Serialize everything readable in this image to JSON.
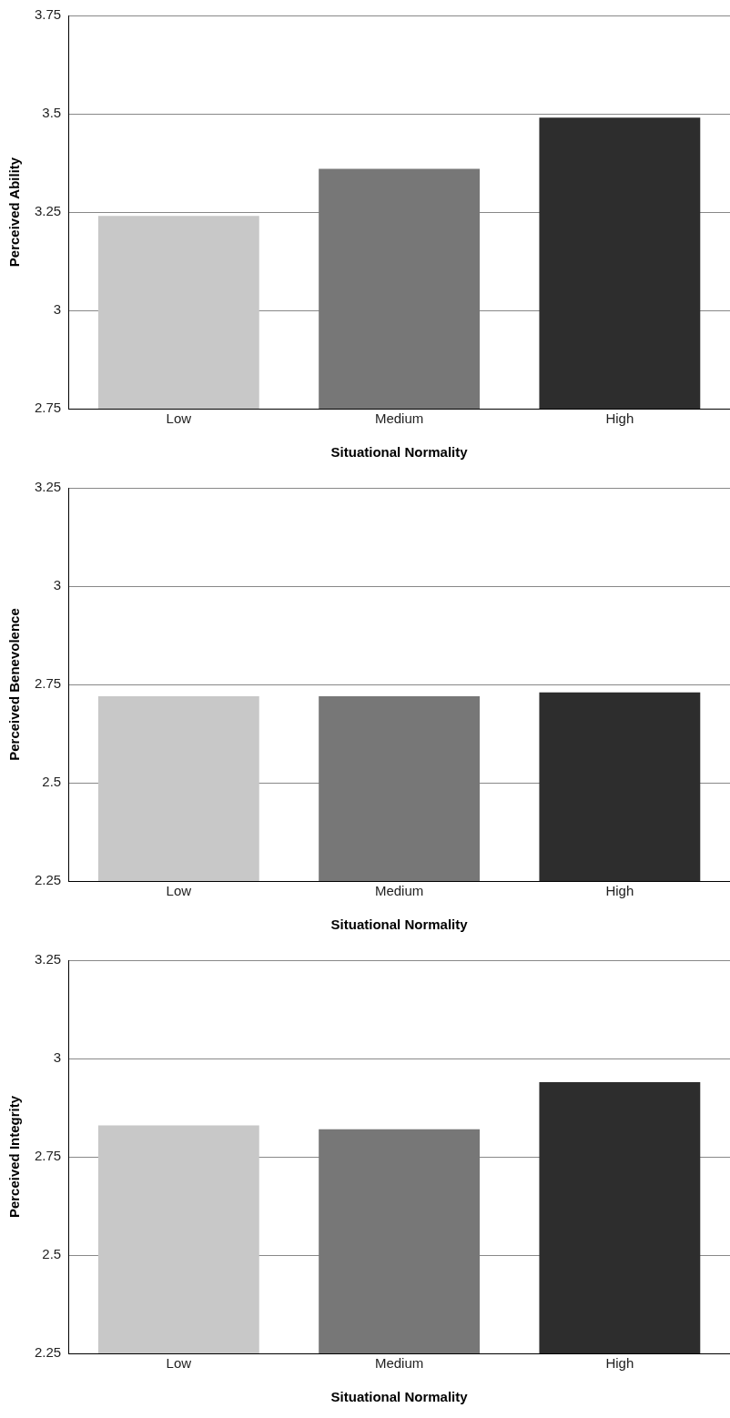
{
  "chart_data": [
    {
      "type": "bar",
      "xlabel": "Situational Normality",
      "ylabel": "Perceived Ability",
      "categories": [
        "Low",
        "Medium",
        "High"
      ],
      "values": [
        3.24,
        3.36,
        3.49
      ],
      "colors": [
        "#c8c8c8",
        "#777777",
        "#2d2d2d"
      ],
      "ylim": [
        2.75,
        3.75
      ],
      "yticks": [
        2.75,
        3,
        3.25,
        3.5,
        3.75
      ],
      "grid": "y"
    },
    {
      "type": "bar",
      "xlabel": "Situational Normality",
      "ylabel": "Perceived Benevolence",
      "categories": [
        "Low",
        "Medium",
        "High"
      ],
      "values": [
        2.72,
        2.72,
        2.73
      ],
      "colors": [
        "#c8c8c8",
        "#777777",
        "#2d2d2d"
      ],
      "ylim": [
        2.25,
        3.25
      ],
      "yticks": [
        2.25,
        2.5,
        2.75,
        3,
        3.25
      ],
      "grid": "y"
    },
    {
      "type": "bar",
      "xlabel": "Situational Normality",
      "ylabel": "Perceived Integrity",
      "categories": [
        "Low",
        "Medium",
        "High"
      ],
      "values": [
        2.83,
        2.82,
        2.94
      ],
      "colors": [
        "#c8c8c8",
        "#777777",
        "#2d2d2d"
      ],
      "ylim": [
        2.25,
        3.25
      ],
      "yticks": [
        2.25,
        2.5,
        2.75,
        3,
        3.25
      ],
      "grid": "y"
    }
  ]
}
